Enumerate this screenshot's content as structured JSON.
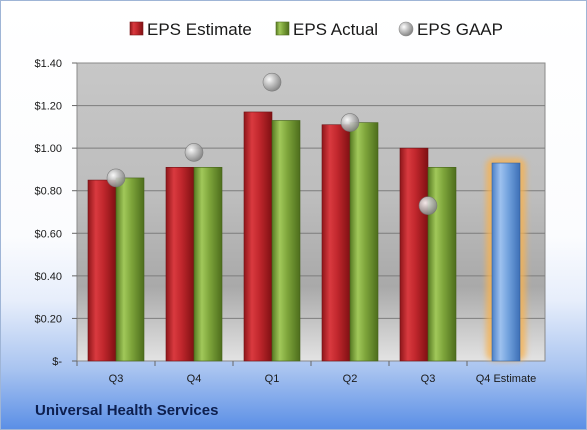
{
  "company": "Universal Health Services",
  "colors": {
    "estimate": "#c1272d",
    "actual": "#7ea53b",
    "gaap": "#b5b5b5",
    "forecast": "#6fa0dc",
    "forecast_glow": "#f6b253",
    "plot_bg": "#b0b0b0"
  },
  "chart_data": {
    "type": "bar",
    "title": "",
    "xlabel": "",
    "ylabel": "",
    "ylim": [
      0,
      1.4
    ],
    "yticks": [
      0,
      0.2,
      0.4,
      0.6,
      0.8,
      1.0,
      1.2,
      1.4
    ],
    "ytick_labels": [
      "$-",
      "$0.20",
      "$0.40",
      "$0.60",
      "$0.80",
      "$1.00",
      "$1.20",
      "$1.40"
    ],
    "categories": [
      "Q3",
      "Q4",
      "Q1",
      "Q2",
      "Q3",
      "Q4 Estimate"
    ],
    "grid": true,
    "legend_position": "top",
    "series": [
      {
        "name": "EPS Estimate",
        "kind": "bar",
        "values": [
          0.85,
          0.91,
          1.17,
          1.11,
          1.0,
          null
        ]
      },
      {
        "name": "EPS Actual",
        "kind": "bar",
        "values": [
          0.86,
          0.91,
          1.13,
          1.12,
          0.91,
          null
        ]
      },
      {
        "name": "EPS GAAP",
        "kind": "marker",
        "values": [
          0.86,
          0.98,
          1.31,
          1.12,
          0.73,
          null
        ]
      },
      {
        "kind": "bar",
        "values": [
          null,
          null,
          null,
          null,
          null,
          0.93
        ]
      }
    ]
  }
}
